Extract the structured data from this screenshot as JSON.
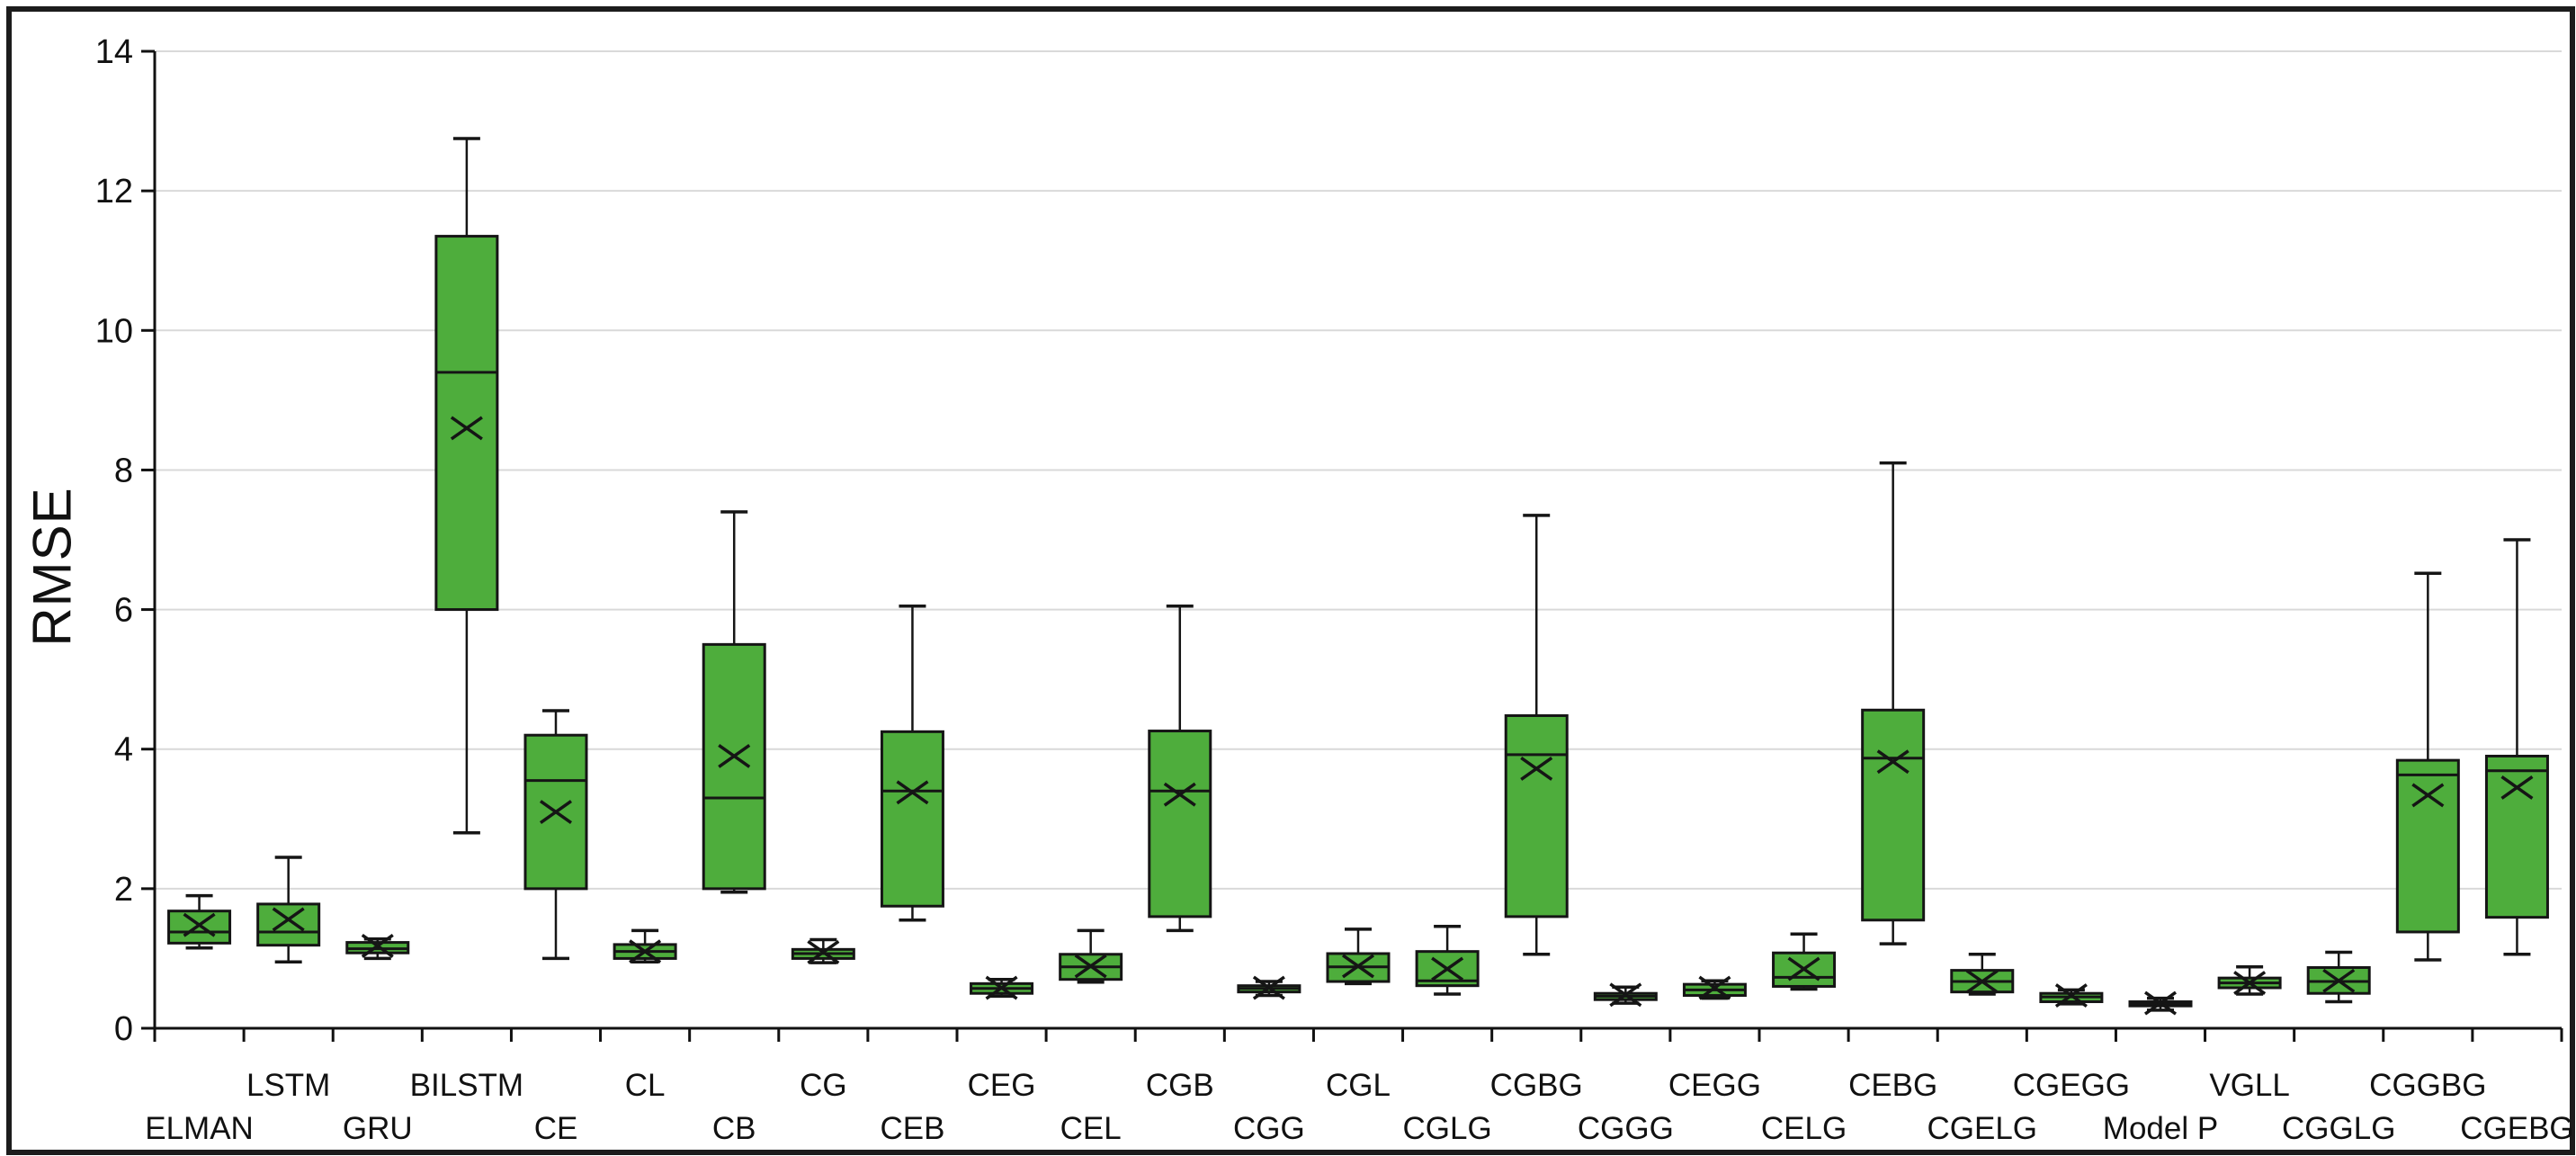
{
  "figure": {
    "y_axis_title": "RMSE"
  },
  "colors": {
    "box_fill": "#4ead3c",
    "box_edge": "#151515",
    "gridline": "#d9d9d9",
    "axis": "#111111",
    "text": "#111111"
  },
  "chart_data": {
    "type": "box",
    "title": "",
    "xlabel": "",
    "ylabel": "RMSE",
    "ylim": [
      0,
      14
    ],
    "yticks": [
      0,
      2,
      4,
      6,
      8,
      10,
      12,
      14
    ],
    "grid": "horizontal gridlines at every y tick, light gray",
    "legend": "none",
    "x_label_layout": "staggered two rows (odd positions bottom row, even positions top row)",
    "categories": [
      "ELMAN",
      "LSTM",
      "GRU",
      "BILSTM",
      "CE",
      "CL",
      "CB",
      "CG",
      "CEB",
      "CEG",
      "CEL",
      "CGB",
      "CGG",
      "CGL",
      "CGLG",
      "CGBG",
      "CGGG",
      "CEGG",
      "CELG",
      "CEBG",
      "CGELG",
      "CGEGG",
      "Model P",
      "VGLL",
      "CGGLG",
      "CGGBG",
      "CGEBG"
    ],
    "boxes": [
      {
        "label": "ELMAN",
        "whislo": 1.15,
        "q1": 1.22,
        "med": 1.38,
        "q3": 1.68,
        "whishi": 1.9,
        "mean": 1.48
      },
      {
        "label": "LSTM",
        "whislo": 0.95,
        "q1": 1.19,
        "med": 1.38,
        "q3": 1.78,
        "whishi": 2.45,
        "mean": 1.56
      },
      {
        "label": "GRU",
        "whislo": 1.0,
        "q1": 1.08,
        "med": 1.14,
        "q3": 1.23,
        "whishi": 1.28,
        "mean": 1.18
      },
      {
        "label": "BILSTM",
        "whislo": 2.8,
        "q1": 6.0,
        "med": 9.4,
        "q3": 11.35,
        "whishi": 12.75,
        "mean": 8.6
      },
      {
        "label": "CE",
        "whislo": 1.0,
        "q1": 2.0,
        "med": 3.55,
        "q3": 4.2,
        "whishi": 4.55,
        "mean": 3.1
      },
      {
        "label": "CL",
        "whislo": 0.95,
        "q1": 1.0,
        "med": 1.1,
        "q3": 1.2,
        "whishi": 1.4,
        "mean": 1.1
      },
      {
        "label": "CB",
        "whislo": 1.95,
        "q1": 2.0,
        "med": 3.3,
        "q3": 5.5,
        "whishi": 7.4,
        "mean": 3.9
      },
      {
        "label": "CG",
        "whislo": 0.94,
        "q1": 1.0,
        "med": 1.07,
        "q3": 1.13,
        "whishi": 1.27,
        "mean": 1.09
      },
      {
        "label": "CEB",
        "whislo": 1.55,
        "q1": 1.75,
        "med": 3.4,
        "q3": 4.25,
        "whishi": 6.05,
        "mean": 3.38
      },
      {
        "label": "CEG",
        "whislo": 0.46,
        "q1": 0.5,
        "med": 0.57,
        "q3": 0.64,
        "whishi": 0.7,
        "mean": 0.58
      },
      {
        "label": "CEL",
        "whislo": 0.66,
        "q1": 0.7,
        "med": 0.88,
        "q3": 1.06,
        "whishi": 1.4,
        "mean": 0.89
      },
      {
        "label": "CGB",
        "whislo": 1.4,
        "q1": 1.6,
        "med": 3.4,
        "q3": 4.26,
        "whishi": 6.05,
        "mean": 3.35
      },
      {
        "label": "CGG",
        "whislo": 0.47,
        "q1": 0.52,
        "med": 0.57,
        "q3": 0.61,
        "whishi": 0.67,
        "mean": 0.58
      },
      {
        "label": "CGL",
        "whislo": 0.64,
        "q1": 0.67,
        "med": 0.88,
        "q3": 1.07,
        "whishi": 1.42,
        "mean": 0.89
      },
      {
        "label": "CGLG",
        "whislo": 0.49,
        "q1": 0.61,
        "med": 0.68,
        "q3": 1.1,
        "whishi": 1.46,
        "mean": 0.85
      },
      {
        "label": "CGBG",
        "whislo": 1.06,
        "q1": 1.6,
        "med": 3.92,
        "q3": 4.48,
        "whishi": 7.35,
        "mean": 3.72
      },
      {
        "label": "CGGG",
        "whislo": 0.36,
        "q1": 0.41,
        "med": 0.46,
        "q3": 0.5,
        "whishi": 0.59,
        "mean": 0.48
      },
      {
        "label": "CEGG",
        "whislo": 0.43,
        "q1": 0.47,
        "med": 0.55,
        "q3": 0.63,
        "whishi": 0.68,
        "mean": 0.58
      },
      {
        "label": "CELG",
        "whislo": 0.56,
        "q1": 0.6,
        "med": 0.73,
        "q3": 1.08,
        "whishi": 1.35,
        "mean": 0.85
      },
      {
        "label": "CEBG",
        "whislo": 1.21,
        "q1": 1.55,
        "med": 3.87,
        "q3": 4.56,
        "whishi": 8.1,
        "mean": 3.82
      },
      {
        "label": "CGELG",
        "whislo": 0.49,
        "q1": 0.52,
        "med": 0.67,
        "q3": 0.83,
        "whishi": 1.06,
        "mean": 0.67
      },
      {
        "label": "CGEGG",
        "whislo": 0.35,
        "q1": 0.38,
        "med": 0.45,
        "q3": 0.5,
        "whishi": 0.55,
        "mean": 0.47
      },
      {
        "label": "Model P",
        "whislo": 0.26,
        "q1": 0.32,
        "med": 0.35,
        "q3": 0.38,
        "whishi": 0.43,
        "mean": 0.36
      },
      {
        "label": "VGLL",
        "whislo": 0.49,
        "q1": 0.58,
        "med": 0.65,
        "q3": 0.72,
        "whishi": 0.88,
        "mean": 0.65
      },
      {
        "label": "CGGLG",
        "whislo": 0.38,
        "q1": 0.5,
        "med": 0.67,
        "q3": 0.87,
        "whishi": 1.09,
        "mean": 0.68
      },
      {
        "label": "CGGBG",
        "whislo": 0.98,
        "q1": 1.38,
        "med": 3.63,
        "q3": 3.84,
        "whishi": 6.52,
        "mean": 3.34
      },
      {
        "label": "CGEBG",
        "whislo": 1.06,
        "q1": 1.59,
        "med": 3.69,
        "q3": 3.9,
        "whishi": 7.0,
        "mean": 3.45
      }
    ]
  }
}
